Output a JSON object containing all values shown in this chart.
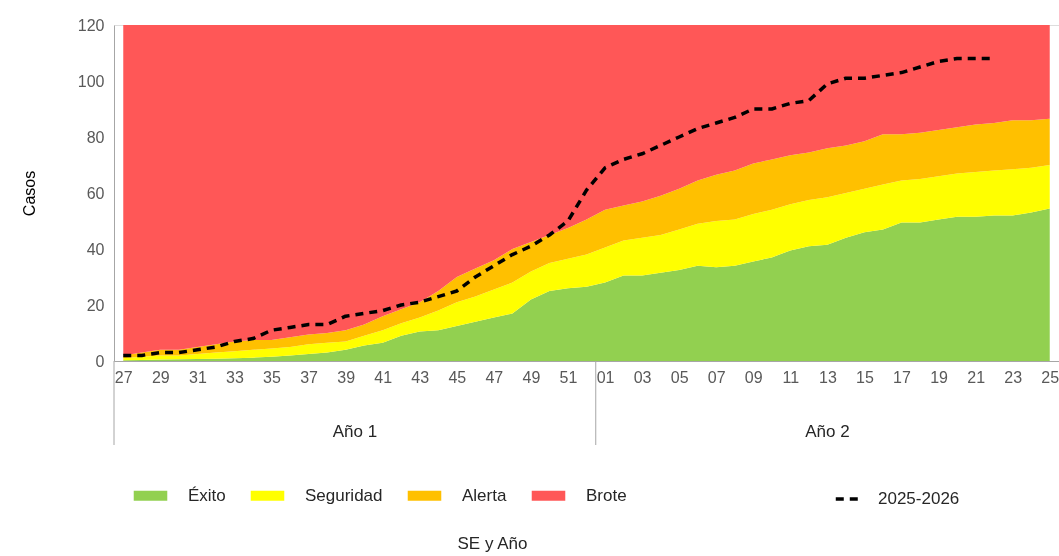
{
  "chart_data": {
    "type": "area",
    "stacked": true,
    "ylabel": "Casos",
    "categories": [
      "27",
      null,
      "29",
      null,
      "31",
      null,
      "33",
      null,
      "35",
      null,
      "37",
      null,
      "39",
      null,
      "41",
      null,
      "43",
      null,
      "45",
      null,
      "47",
      null,
      "49",
      null,
      "51",
      null,
      "01",
      null,
      "03",
      null,
      "05",
      null,
      "07",
      null,
      "09",
      null,
      "11",
      null,
      "13",
      null,
      "15",
      null,
      "17",
      null,
      "19",
      null,
      "21",
      null,
      "23",
      null,
      "25"
    ],
    "series": [
      {
        "name": "Éxito",
        "color": "#92d050",
        "values": [
          0.3,
          0.4,
          0.5,
          0.6,
          0.7,
          0.8,
          1,
          1.2,
          1.5,
          2,
          2.5,
          3,
          4,
          5.5,
          6.5,
          9,
          10.5,
          11,
          12.5,
          14,
          15.5,
          17,
          22,
          25,
          26,
          26.5,
          28,
          30.5,
          30.5,
          31.5,
          32.5,
          34,
          33.5,
          34,
          35.5,
          37,
          39.5,
          41,
          41.5,
          44,
          46,
          47,
          49.5,
          49.5,
          50.5,
          51.5,
          51.5,
          52,
          52,
          53,
          54.5
        ]
      },
      {
        "name": "Seguridad",
        "color": "#ffff00",
        "values": [
          0.7,
          1.1,
          1.5,
          1.4,
          1.8,
          2.2,
          2.5,
          2.8,
          3,
          3,
          3.5,
          3.5,
          3,
          3.5,
          4.5,
          4.5,
          5,
          7,
          8.5,
          9,
          10,
          11,
          10,
          10,
          10.5,
          11.5,
          12.5,
          12.5,
          13.5,
          13.5,
          14.5,
          15,
          16.5,
          16.5,
          17,
          17,
          16.5,
          16.5,
          17,
          16,
          15.5,
          16,
          15,
          15.5,
          15.5,
          15.5,
          16,
          16,
          16.5,
          16,
          15.5
        ]
      },
      {
        "name": "Alerta",
        "color": "#ffc000",
        "values": [
          1,
          1.5,
          2,
          2,
          2.5,
          3,
          3.5,
          3.5,
          3,
          3.5,
          3.5,
          3.5,
          4,
          4,
          5,
          5,
          5.5,
          7,
          9,
          10,
          10.5,
          12,
          10.5,
          10,
          11,
          12.5,
          13.5,
          12.5,
          13,
          14,
          14.5,
          15.5,
          16.5,
          17.5,
          18,
          18,
          17.5,
          17,
          17.5,
          17,
          17,
          18,
          16.5,
          16.5,
          16.5,
          16.5,
          17,
          17,
          17.5,
          17,
          16.5
        ]
      },
      {
        "name": "Brote",
        "color": "#ff5757",
        "values": [
          118,
          117,
          116,
          116,
          115,
          114,
          113,
          112.5,
          112.5,
          111.5,
          110.5,
          110,
          109,
          107,
          104,
          101.5,
          99,
          95,
          90,
          87,
          84,
          80,
          77.5,
          75,
          72.5,
          69.5,
          66,
          64.5,
          63,
          61,
          58.5,
          55.5,
          53.5,
          52,
          49.5,
          48,
          46.5,
          45.5,
          44,
          43,
          41.5,
          39,
          39,
          38.5,
          37.5,
          36.5,
          35.5,
          35,
          34,
          34,
          33.5
        ]
      },
      {
        "name": "2025-2026",
        "color": "#000000",
        "type": "line",
        "line_style": "dashed",
        "values": [
          2,
          2,
          3,
          3,
          4,
          5,
          7,
          8,
          11,
          12,
          13,
          13,
          16,
          17,
          18,
          20,
          21,
          23,
          25,
          30,
          34,
          38,
          41,
          45,
          50,
          61,
          69,
          72,
          74,
          77,
          80,
          83,
          85,
          87,
          90,
          90,
          92,
          93,
          99,
          101,
          101,
          102,
          103,
          105,
          107,
          108,
          108,
          108,
          null,
          null,
          null
        ]
      }
    ],
    "ylim": [
      0,
      120
    ],
    "yticks": [
      0,
      20,
      40,
      60,
      80,
      100,
      120
    ],
    "grid": false,
    "legend": "bottom",
    "annotations": [
      "Año 1",
      "Año 2",
      "SE y Año"
    ]
  }
}
